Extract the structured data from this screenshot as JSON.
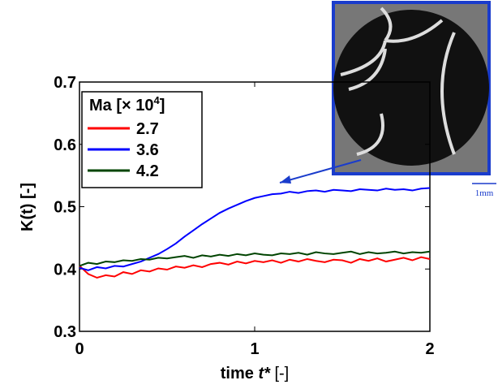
{
  "chart_data": {
    "type": "line",
    "ylabel": "K(t) [-]",
    "xlabel": {
      "prefix": "time ",
      "variable": "t*",
      "suffix": " [-]"
    },
    "legend_title": {
      "text": "Ma [× 10",
      "superscript": "4",
      "suffix": "]"
    },
    "annotation": "1mm",
    "xlim": [
      0,
      2
    ],
    "xticks": [
      0,
      1,
      2
    ],
    "ylim": [
      0.3,
      0.7
    ],
    "yticks": [
      0.3,
      0.4,
      0.5,
      0.6,
      0.7
    ],
    "legend": "upper left",
    "x": [
      0,
      0.05,
      0.1,
      0.15,
      0.2,
      0.25,
      0.3,
      0.35,
      0.4,
      0.45,
      0.5,
      0.55,
      0.6,
      0.65,
      0.7,
      0.75,
      0.8,
      0.85,
      0.9,
      0.95,
      1,
      1.05,
      1.1,
      1.15,
      1.2,
      1.25,
      1.3,
      1.35,
      1.4,
      1.45,
      1.5,
      1.55,
      1.6,
      1.65,
      1.7,
      1.75,
      1.8,
      1.85,
      1.9,
      1.95,
      2
    ],
    "series": [
      {
        "name": "2.7",
        "color": "#ff0000",
        "values": [
          0.405,
          0.392,
          0.386,
          0.39,
          0.388,
          0.395,
          0.392,
          0.398,
          0.396,
          0.401,
          0.399,
          0.404,
          0.402,
          0.406,
          0.403,
          0.408,
          0.41,
          0.407,
          0.412,
          0.409,
          0.413,
          0.411,
          0.414,
          0.41,
          0.415,
          0.412,
          0.416,
          0.413,
          0.411,
          0.415,
          0.414,
          0.41,
          0.416,
          0.413,
          0.417,
          0.412,
          0.415,
          0.418,
          0.414,
          0.419,
          0.416
        ]
      },
      {
        "name": "3.6",
        "color": "#0000ff",
        "values": [
          0.402,
          0.398,
          0.403,
          0.401,
          0.405,
          0.404,
          0.408,
          0.412,
          0.418,
          0.424,
          0.432,
          0.441,
          0.452,
          0.462,
          0.472,
          0.481,
          0.49,
          0.497,
          0.503,
          0.509,
          0.514,
          0.517,
          0.52,
          0.521,
          0.524,
          0.522,
          0.525,
          0.526,
          0.524,
          0.527,
          0.526,
          0.525,
          0.528,
          0.527,
          0.526,
          0.529,
          0.527,
          0.528,
          0.526,
          0.529,
          0.53
        ]
      },
      {
        "name": "4.2",
        "color": "#004400",
        "values": [
          0.405,
          0.41,
          0.408,
          0.412,
          0.411,
          0.414,
          0.413,
          0.416,
          0.415,
          0.418,
          0.417,
          0.419,
          0.421,
          0.418,
          0.422,
          0.42,
          0.423,
          0.421,
          0.424,
          0.422,
          0.425,
          0.423,
          0.422,
          0.425,
          0.424,
          0.426,
          0.423,
          0.427,
          0.425,
          0.424,
          0.426,
          0.428,
          0.424,
          0.427,
          0.425,
          0.426,
          0.428,
          0.425,
          0.427,
          0.426,
          0.428
        ]
      }
    ]
  }
}
